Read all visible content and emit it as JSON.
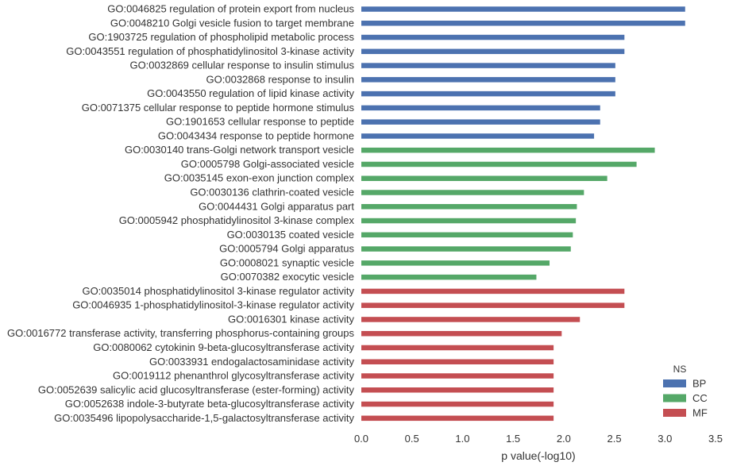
{
  "chart_data": {
    "type": "bar",
    "orientation": "horizontal",
    "xlabel": "p value(-log10)",
    "ylabel": "",
    "xlim": [
      0,
      3.5
    ],
    "xticks": [
      "0.0",
      "0.5",
      "1.0",
      "1.5",
      "2.0",
      "2.5",
      "3.0",
      "3.5"
    ],
    "grid": false,
    "legend": {
      "title": "NS",
      "placement": "bottom-right",
      "entries": [
        {
          "name": "BP",
          "color": "#4c72b0"
        },
        {
          "name": "CC",
          "color": "#55a868"
        },
        {
          "name": "MF",
          "color": "#c44e52"
        }
      ]
    },
    "bars": [
      {
        "label": "GO:0046825 regulation of protein export from nucleus",
        "value": 3.2,
        "ns": "BP"
      },
      {
        "label": "GO:0048210 Golgi vesicle fusion to target membrane",
        "value": 3.2,
        "ns": "BP"
      },
      {
        "label": "GO:1903725 regulation of phospholipid metabolic process",
        "value": 2.6,
        "ns": "BP"
      },
      {
        "label": "GO:0043551 regulation of phosphatidylinositol 3-kinase activity",
        "value": 2.6,
        "ns": "BP"
      },
      {
        "label": "GO:0032869 cellular response to insulin stimulus",
        "value": 2.51,
        "ns": "BP"
      },
      {
        "label": "GO:0032868 response to insulin",
        "value": 2.51,
        "ns": "BP"
      },
      {
        "label": "GO:0043550 regulation of lipid kinase activity",
        "value": 2.51,
        "ns": "BP"
      },
      {
        "label": "GO:0071375 cellular response to peptide hormone stimulus",
        "value": 2.36,
        "ns": "BP"
      },
      {
        "label": "GO:1901653 cellular response to peptide",
        "value": 2.36,
        "ns": "BP"
      },
      {
        "label": "GO:0043434 response to peptide hormone",
        "value": 2.3,
        "ns": "BP"
      },
      {
        "label": "GO:0030140 trans-Golgi network transport vesicle",
        "value": 2.9,
        "ns": "CC"
      },
      {
        "label": "GO:0005798 Golgi-associated vesicle",
        "value": 2.72,
        "ns": "CC"
      },
      {
        "label": "GO:0035145 exon-exon junction complex",
        "value": 2.43,
        "ns": "CC"
      },
      {
        "label": "GO:0030136 clathrin-coated vesicle",
        "value": 2.2,
        "ns": "CC"
      },
      {
        "label": "GO:0044431 Golgi apparatus part",
        "value": 2.13,
        "ns": "CC"
      },
      {
        "label": "GO:0005942 phosphatidylinositol 3-kinase complex",
        "value": 2.12,
        "ns": "CC"
      },
      {
        "label": "GO:0030135 coated vesicle",
        "value": 2.09,
        "ns": "CC"
      },
      {
        "label": "GO:0005794 Golgi apparatus",
        "value": 2.07,
        "ns": "CC"
      },
      {
        "label": "GO:0008021 synaptic vesicle",
        "value": 1.86,
        "ns": "CC"
      },
      {
        "label": "GO:0070382 exocytic vesicle",
        "value": 1.73,
        "ns": "CC"
      },
      {
        "label": "GO:0035014 phosphatidylinositol 3-kinase regulator activity",
        "value": 2.6,
        "ns": "MF"
      },
      {
        "label": "GO:0046935 1-phosphatidylinositol-3-kinase regulator activity",
        "value": 2.6,
        "ns": "MF"
      },
      {
        "label": "GO:0016301 kinase activity",
        "value": 2.16,
        "ns": "MF"
      },
      {
        "label": "GO:0016772 transferase activity, transferring phosphorus-containing groups",
        "value": 1.98,
        "ns": "MF"
      },
      {
        "label": "GO:0080062 cytokinin 9-beta-glucosyltransferase activity",
        "value": 1.9,
        "ns": "MF"
      },
      {
        "label": "GO:0033931 endogalactosaminidase activity",
        "value": 1.9,
        "ns": "MF"
      },
      {
        "label": "GO:0019112 phenanthrol glycosyltransferase activity",
        "value": 1.9,
        "ns": "MF"
      },
      {
        "label": "GO:0052639 salicylic acid glucosyltransferase (ester-forming) activity",
        "value": 1.9,
        "ns": "MF"
      },
      {
        "label": "GO:0052638 indole-3-butyrate beta-glucosyltransferase activity",
        "value": 1.9,
        "ns": "MF"
      },
      {
        "label": "GO:0035496 lipopolysaccharide-1,5-galactosyltransferase activity",
        "value": 1.9,
        "ns": "MF"
      }
    ]
  }
}
